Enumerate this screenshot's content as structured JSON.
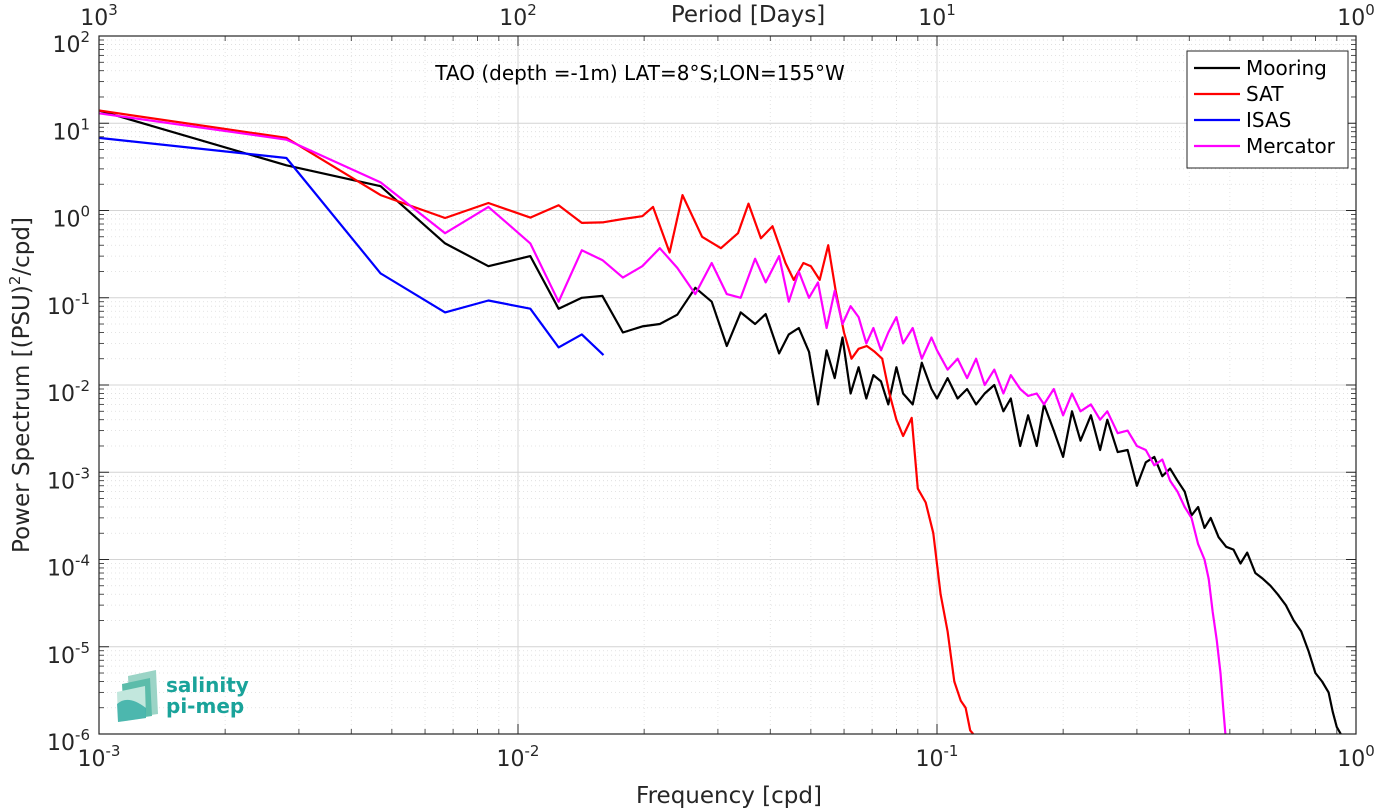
{
  "chart_data": {
    "type": "line",
    "title": "TAO (depth =-1m) LAT=8°S;LON=155°W",
    "xlabel": "Frequency [cpd]",
    "ylabel": "Power Spectrum [(PSU)²/cpd]",
    "top_xlabel": "Period [Days]",
    "x_scale": "log",
    "y_scale": "log",
    "xlim": [
      0.001,
      1
    ],
    "ylim": [
      1e-06,
      100
    ],
    "grid": true,
    "legend_position": "top-right",
    "x_ticks": [
      {
        "base": "10",
        "exp": "-3",
        "value": 0.001
      },
      {
        "base": "10",
        "exp": "-2",
        "value": 0.01
      },
      {
        "base": "10",
        "exp": "-1",
        "value": 0.1
      },
      {
        "base": "10",
        "exp": "0",
        "value": 1
      }
    ],
    "top_ticks": [
      {
        "base": "10",
        "exp": "3",
        "value": 0.001
      },
      {
        "base": "10",
        "exp": "2",
        "value": 0.01
      },
      {
        "base": "10",
        "exp": "1",
        "value": 0.1
      },
      {
        "base": "10",
        "exp": "0",
        "value": 1
      }
    ],
    "y_ticks": [
      {
        "base": "10",
        "exp": "2",
        "value": 100
      },
      {
        "base": "10",
        "exp": "1",
        "value": 10
      },
      {
        "base": "10",
        "exp": "0",
        "value": 1
      },
      {
        "base": "10",
        "exp": "-1",
        "value": 0.1
      },
      {
        "base": "10",
        "exp": "-2",
        "value": 0.01
      },
      {
        "base": "10",
        "exp": "-3",
        "value": 0.001
      },
      {
        "base": "10",
        "exp": "-4",
        "value": 0.0001
      },
      {
        "base": "10",
        "exp": "-5",
        "value": 1e-05
      },
      {
        "base": "10",
        "exp": "-6",
        "value": 1e-06
      }
    ],
    "series": [
      {
        "name": "Mooring",
        "color": "#000000",
        "points": [
          [
            0.001,
            14
          ],
          [
            0.0028,
            3.3
          ],
          [
            0.0047,
            1.9
          ],
          [
            0.0067,
            0.42
          ],
          [
            0.0085,
            0.23
          ],
          [
            0.0107,
            0.3
          ],
          [
            0.0125,
            0.075
          ],
          [
            0.0142,
            0.1
          ],
          [
            0.0159,
            0.105
          ],
          [
            0.0178,
            0.04
          ],
          [
            0.0198,
            0.047
          ],
          [
            0.0218,
            0.05
          ],
          [
            0.024,
            0.064
          ],
          [
            0.0265,
            0.13
          ],
          [
            0.029,
            0.09
          ],
          [
            0.0315,
            0.028
          ],
          [
            0.034,
            0.068
          ],
          [
            0.0368,
            0.05
          ],
          [
            0.039,
            0.065
          ],
          [
            0.042,
            0.023
          ],
          [
            0.0443,
            0.038
          ],
          [
            0.0468,
            0.045
          ],
          [
            0.0495,
            0.024
          ],
          [
            0.052,
            0.006
          ],
          [
            0.0545,
            0.025
          ],
          [
            0.057,
            0.012
          ],
          [
            0.0595,
            0.035
          ],
          [
            0.0622,
            0.008
          ],
          [
            0.065,
            0.016
          ],
          [
            0.0678,
            0.007
          ],
          [
            0.0705,
            0.013
          ],
          [
            0.0735,
            0.011
          ],
          [
            0.0765,
            0.006
          ],
          [
            0.08,
            0.016
          ],
          [
            0.083,
            0.008
          ],
          [
            0.0875,
            0.006
          ],
          [
            0.092,
            0.018
          ],
          [
            0.097,
            0.009
          ],
          [
            0.1,
            0.007
          ],
          [
            0.106,
            0.012
          ],
          [
            0.112,
            0.007
          ],
          [
            0.118,
            0.009
          ],
          [
            0.124,
            0.006
          ],
          [
            0.13,
            0.008
          ],
          [
            0.137,
            0.01
          ],
          [
            0.144,
            0.005
          ],
          [
            0.15,
            0.007
          ],
          [
            0.158,
            0.002
          ],
          [
            0.165,
            0.0045
          ],
          [
            0.173,
            0.002
          ],
          [
            0.18,
            0.006
          ],
          [
            0.19,
            0.003
          ],
          [
            0.2,
            0.0015
          ],
          [
            0.21,
            0.005
          ],
          [
            0.22,
            0.0023
          ],
          [
            0.233,
            0.0045
          ],
          [
            0.245,
            0.0018
          ],
          [
            0.255,
            0.004
          ],
          [
            0.27,
            0.0017
          ],
          [
            0.285,
            0.0018
          ],
          [
            0.3,
            0.0007
          ],
          [
            0.315,
            0.0013
          ],
          [
            0.33,
            0.0015
          ],
          [
            0.345,
            0.0009
          ],
          [
            0.36,
            0.0011
          ],
          [
            0.375,
            0.0008
          ],
          [
            0.39,
            0.0006
          ],
          [
            0.405,
            0.00032
          ],
          [
            0.42,
            0.0004
          ],
          [
            0.435,
            0.00023
          ],
          [
            0.45,
            0.0003
          ],
          [
            0.47,
            0.00018
          ],
          [
            0.49,
            0.00014
          ],
          [
            0.51,
            0.00013
          ],
          [
            0.53,
            9e-05
          ],
          [
            0.55,
            0.00012
          ],
          [
            0.575,
            7e-05
          ],
          [
            0.6,
            6e-05
          ],
          [
            0.625,
            5e-05
          ],
          [
            0.65,
            4e-05
          ],
          [
            0.68,
            3e-05
          ],
          [
            0.71,
            2e-05
          ],
          [
            0.74,
            1.5e-05
          ],
          [
            0.77,
            9e-06
          ],
          [
            0.8,
            5e-06
          ],
          [
            0.83,
            4e-06
          ],
          [
            0.86,
            3e-06
          ],
          [
            0.88,
            1.8e-06
          ],
          [
            0.9,
            1.2e-06
          ],
          [
            0.92,
            1e-06
          ]
        ]
      },
      {
        "name": "SAT",
        "color": "#ff0000",
        "points": [
          [
            0.001,
            14
          ],
          [
            0.0028,
            6.8
          ],
          [
            0.0047,
            1.5
          ],
          [
            0.0067,
            0.82
          ],
          [
            0.0085,
            1.22
          ],
          [
            0.0107,
            0.83
          ],
          [
            0.0125,
            1.15
          ],
          [
            0.0142,
            0.72
          ],
          [
            0.0159,
            0.73
          ],
          [
            0.0178,
            0.8
          ],
          [
            0.0198,
            0.86
          ],
          [
            0.021,
            1.1
          ],
          [
            0.023,
            0.33
          ],
          [
            0.0247,
            1.5
          ],
          [
            0.0275,
            0.5
          ],
          [
            0.0305,
            0.37
          ],
          [
            0.0335,
            0.55
          ],
          [
            0.0355,
            1.2
          ],
          [
            0.038,
            0.48
          ],
          [
            0.0405,
            0.66
          ],
          [
            0.0435,
            0.25
          ],
          [
            0.0455,
            0.16
          ],
          [
            0.048,
            0.25
          ],
          [
            0.05,
            0.23
          ],
          [
            0.0525,
            0.16
          ],
          [
            0.055,
            0.4
          ],
          [
            0.0573,
            0.12
          ],
          [
            0.06,
            0.04
          ],
          [
            0.0625,
            0.02
          ],
          [
            0.065,
            0.026
          ],
          [
            0.068,
            0.028
          ],
          [
            0.071,
            0.024
          ],
          [
            0.074,
            0.02
          ],
          [
            0.077,
            0.008
          ],
          [
            0.08,
            0.004
          ],
          [
            0.083,
            0.0026
          ],
          [
            0.087,
            0.0042
          ],
          [
            0.09,
            0.00065
          ],
          [
            0.094,
            0.00045
          ],
          [
            0.098,
            0.0002
          ],
          [
            0.102,
            4e-05
          ],
          [
            0.106,
            1.5e-05
          ],
          [
            0.11,
            4e-06
          ],
          [
            0.114,
            2.4e-06
          ],
          [
            0.117,
            2e-06
          ],
          [
            0.12,
            1.1e-06
          ],
          [
            0.122,
            1e-06
          ]
        ]
      },
      {
        "name": "ISAS",
        "color": "#0000ff",
        "points": [
          [
            0.001,
            6.8
          ],
          [
            0.0028,
            4
          ],
          [
            0.0047,
            0.19
          ],
          [
            0.0067,
            0.068
          ],
          [
            0.0085,
            0.093
          ],
          [
            0.0107,
            0.075
          ],
          [
            0.0125,
            0.027
          ],
          [
            0.0142,
            0.038
          ],
          [
            0.016,
            0.022
          ]
        ]
      },
      {
        "name": "Mercator",
        "color": "#ff00ff",
        "points": [
          [
            0.001,
            13
          ],
          [
            0.0028,
            6.5
          ],
          [
            0.0047,
            2.1
          ],
          [
            0.0067,
            0.55
          ],
          [
            0.0085,
            1.1
          ],
          [
            0.0107,
            0.42
          ],
          [
            0.0125,
            0.09
          ],
          [
            0.0142,
            0.35
          ],
          [
            0.0159,
            0.27
          ],
          [
            0.0178,
            0.17
          ],
          [
            0.0198,
            0.23
          ],
          [
            0.0218,
            0.37
          ],
          [
            0.024,
            0.22
          ],
          [
            0.0265,
            0.11
          ],
          [
            0.029,
            0.25
          ],
          [
            0.0315,
            0.11
          ],
          [
            0.034,
            0.1
          ],
          [
            0.0368,
            0.28
          ],
          [
            0.039,
            0.15
          ],
          [
            0.042,
            0.3
          ],
          [
            0.0443,
            0.09
          ],
          [
            0.0468,
            0.2
          ],
          [
            0.0495,
            0.1
          ],
          [
            0.052,
            0.15
          ],
          [
            0.0545,
            0.045
          ],
          [
            0.057,
            0.12
          ],
          [
            0.0595,
            0.05
          ],
          [
            0.0622,
            0.08
          ],
          [
            0.065,
            0.06
          ],
          [
            0.0678,
            0.03
          ],
          [
            0.0705,
            0.045
          ],
          [
            0.0735,
            0.025
          ],
          [
            0.0765,
            0.04
          ],
          [
            0.08,
            0.06
          ],
          [
            0.083,
            0.03
          ],
          [
            0.0875,
            0.045
          ],
          [
            0.092,
            0.02
          ],
          [
            0.097,
            0.035
          ],
          [
            0.1,
            0.025
          ],
          [
            0.106,
            0.015
          ],
          [
            0.112,
            0.02
          ],
          [
            0.118,
            0.012
          ],
          [
            0.124,
            0.02
          ],
          [
            0.13,
            0.01
          ],
          [
            0.137,
            0.015
          ],
          [
            0.144,
            0.008
          ],
          [
            0.15,
            0.013
          ],
          [
            0.158,
            0.009
          ],
          [
            0.165,
            0.0075
          ],
          [
            0.173,
            0.008
          ],
          [
            0.18,
            0.006
          ],
          [
            0.19,
            0.009
          ],
          [
            0.2,
            0.0045
          ],
          [
            0.21,
            0.008
          ],
          [
            0.22,
            0.005
          ],
          [
            0.233,
            0.006
          ],
          [
            0.245,
            0.004
          ],
          [
            0.255,
            0.005
          ],
          [
            0.27,
            0.0028
          ],
          [
            0.285,
            0.003
          ],
          [
            0.3,
            0.002
          ],
          [
            0.315,
            0.0018
          ],
          [
            0.33,
            0.0012
          ],
          [
            0.345,
            0.0014
          ],
          [
            0.36,
            0.0008
          ],
          [
            0.375,
            0.0006
          ],
          [
            0.39,
            0.0004
          ],
          [
            0.405,
            0.0003
          ],
          [
            0.42,
            0.00015
          ],
          [
            0.435,
            0.0001
          ],
          [
            0.445,
            6e-05
          ],
          [
            0.455,
            2.5e-05
          ],
          [
            0.465,
            1.2e-05
          ],
          [
            0.475,
            5e-06
          ],
          [
            0.482,
            2e-06
          ],
          [
            0.488,
            1e-06
          ]
        ]
      }
    ]
  },
  "logo": {
    "line1": "salinity",
    "line2": "pi-mep"
  }
}
